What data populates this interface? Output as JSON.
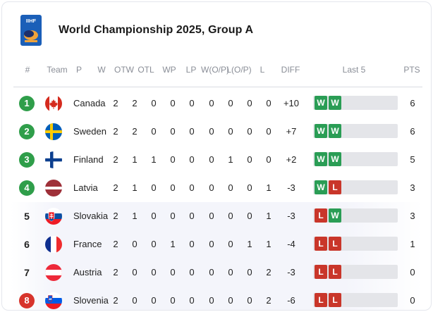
{
  "header": {
    "title": "World Championship 2025, Group A",
    "logo_text": "IIHF"
  },
  "columns": [
    "#",
    "Team",
    "P",
    "W",
    "OTW",
    "OTL",
    "WP",
    "LP",
    "W(O/P)",
    "L(O/P)",
    "L",
    "DIFF",
    "Last 5",
    "PTS"
  ],
  "rows": [
    {
      "rank": "1",
      "rank_style": "q",
      "team": "Canada",
      "flag": "canada-flag-icon",
      "stats": [
        "2",
        "2",
        "0",
        "0",
        "0",
        "0",
        "0",
        "0",
        "0"
      ],
      "diff": "+10",
      "last5": [
        "W",
        "W"
      ],
      "pts": "6"
    },
    {
      "rank": "2",
      "rank_style": "q",
      "team": "Sweden",
      "flag": "sweden-flag-icon",
      "stats": [
        "2",
        "2",
        "0",
        "0",
        "0",
        "0",
        "0",
        "0",
        "0"
      ],
      "diff": "+7",
      "last5": [
        "W",
        "W"
      ],
      "pts": "6"
    },
    {
      "rank": "3",
      "rank_style": "q",
      "team": "Finland",
      "flag": "finland-flag-icon",
      "stats": [
        "2",
        "1",
        "1",
        "0",
        "0",
        "0",
        "1",
        "0",
        "0"
      ],
      "diff": "+2",
      "last5": [
        "W",
        "W"
      ],
      "pts": "5"
    },
    {
      "rank": "4",
      "rank_style": "q",
      "team": "Latvia",
      "flag": "latvia-flag-icon",
      "stats": [
        "2",
        "1",
        "0",
        "0",
        "0",
        "0",
        "0",
        "0",
        "1"
      ],
      "diff": "-3",
      "last5": [
        "W",
        "L"
      ],
      "pts": "3"
    },
    {
      "rank": "5",
      "rank_style": "n",
      "team": "Slovakia",
      "flag": "slovakia-flag-icon",
      "stats": [
        "2",
        "1",
        "0",
        "0",
        "0",
        "0",
        "0",
        "0",
        "1"
      ],
      "diff": "-3",
      "last5": [
        "L",
        "W"
      ],
      "pts": "3"
    },
    {
      "rank": "6",
      "rank_style": "n",
      "team": "France",
      "flag": "france-flag-icon",
      "stats": [
        "2",
        "0",
        "0",
        "1",
        "0",
        "0",
        "0",
        "1",
        "1"
      ],
      "diff": "-4",
      "last5": [
        "L",
        "L"
      ],
      "pts": "1"
    },
    {
      "rank": "7",
      "rank_style": "n",
      "team": "Austria",
      "flag": "austria-flag-icon",
      "stats": [
        "2",
        "0",
        "0",
        "0",
        "0",
        "0",
        "0",
        "0",
        "2"
      ],
      "diff": "-3",
      "last5": [
        "L",
        "L"
      ],
      "pts": "0"
    },
    {
      "rank": "8",
      "rank_style": "r",
      "team": "Slovenia",
      "flag": "slovenia-flag-icon",
      "stats": [
        "2",
        "0",
        "0",
        "0",
        "0",
        "0",
        "0",
        "0",
        "2"
      ],
      "diff": "-6",
      "last5": [
        "L",
        "L"
      ],
      "pts": "0"
    }
  ],
  "colors": {
    "qualified": "#2f9e4a",
    "relegated": "#d7342c",
    "win": "#2a9d55",
    "loss": "#c9362a"
  }
}
